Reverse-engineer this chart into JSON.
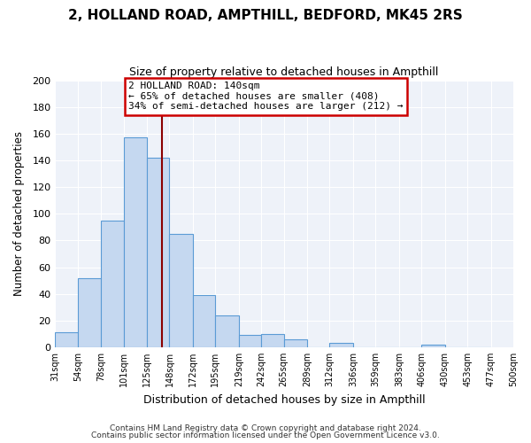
{
  "title": "2, HOLLAND ROAD, AMPTHILL, BEDFORD, MK45 2RS",
  "subtitle": "Size of property relative to detached houses in Ampthill",
  "xlabel": "Distribution of detached houses by size in Ampthill",
  "ylabel": "Number of detached properties",
  "bar_values": [
    11,
    52,
    95,
    157,
    142,
    85,
    39,
    24,
    9,
    10,
    6,
    0,
    3,
    0,
    0,
    0,
    2,
    0,
    0
  ],
  "all_ticks": [
    31,
    54,
    78,
    101,
    125,
    148,
    172,
    195,
    219,
    242,
    265,
    289,
    312,
    336,
    359,
    383,
    406,
    430,
    453,
    477,
    500
  ],
  "tick_labels": [
    "31sqm",
    "54sqm",
    "78sqm",
    "101sqm",
    "125sqm",
    "148sqm",
    "172sqm",
    "195sqm",
    "219sqm",
    "242sqm",
    "265sqm",
    "289sqm",
    "312sqm",
    "336sqm",
    "359sqm",
    "383sqm",
    "406sqm",
    "430sqm",
    "453sqm",
    "477sqm",
    "500sqm"
  ],
  "bar_color": "#c5d8f0",
  "bar_edge_color": "#5b9bd5",
  "vline_x": 140,
  "vline_color": "#8b0000",
  "ylim": [
    0,
    200
  ],
  "yticks": [
    0,
    20,
    40,
    60,
    80,
    100,
    120,
    140,
    160,
    180,
    200
  ],
  "annotation_title": "2 HOLLAND ROAD: 140sqm",
  "annotation_line1": "← 65% of detached houses are smaller (408)",
  "annotation_line2": "34% of semi-detached houses are larger (212) →",
  "annotation_box_color": "#ffffff",
  "annotation_box_edge": "#cc0000",
  "footer_line1": "Contains HM Land Registry data © Crown copyright and database right 2024.",
  "footer_line2": "Contains public sector information licensed under the Open Government Licence v3.0.",
  "plot_bg_color": "#eef2f9",
  "fig_bg_color": "#ffffff",
  "grid_color": "#ffffff"
}
